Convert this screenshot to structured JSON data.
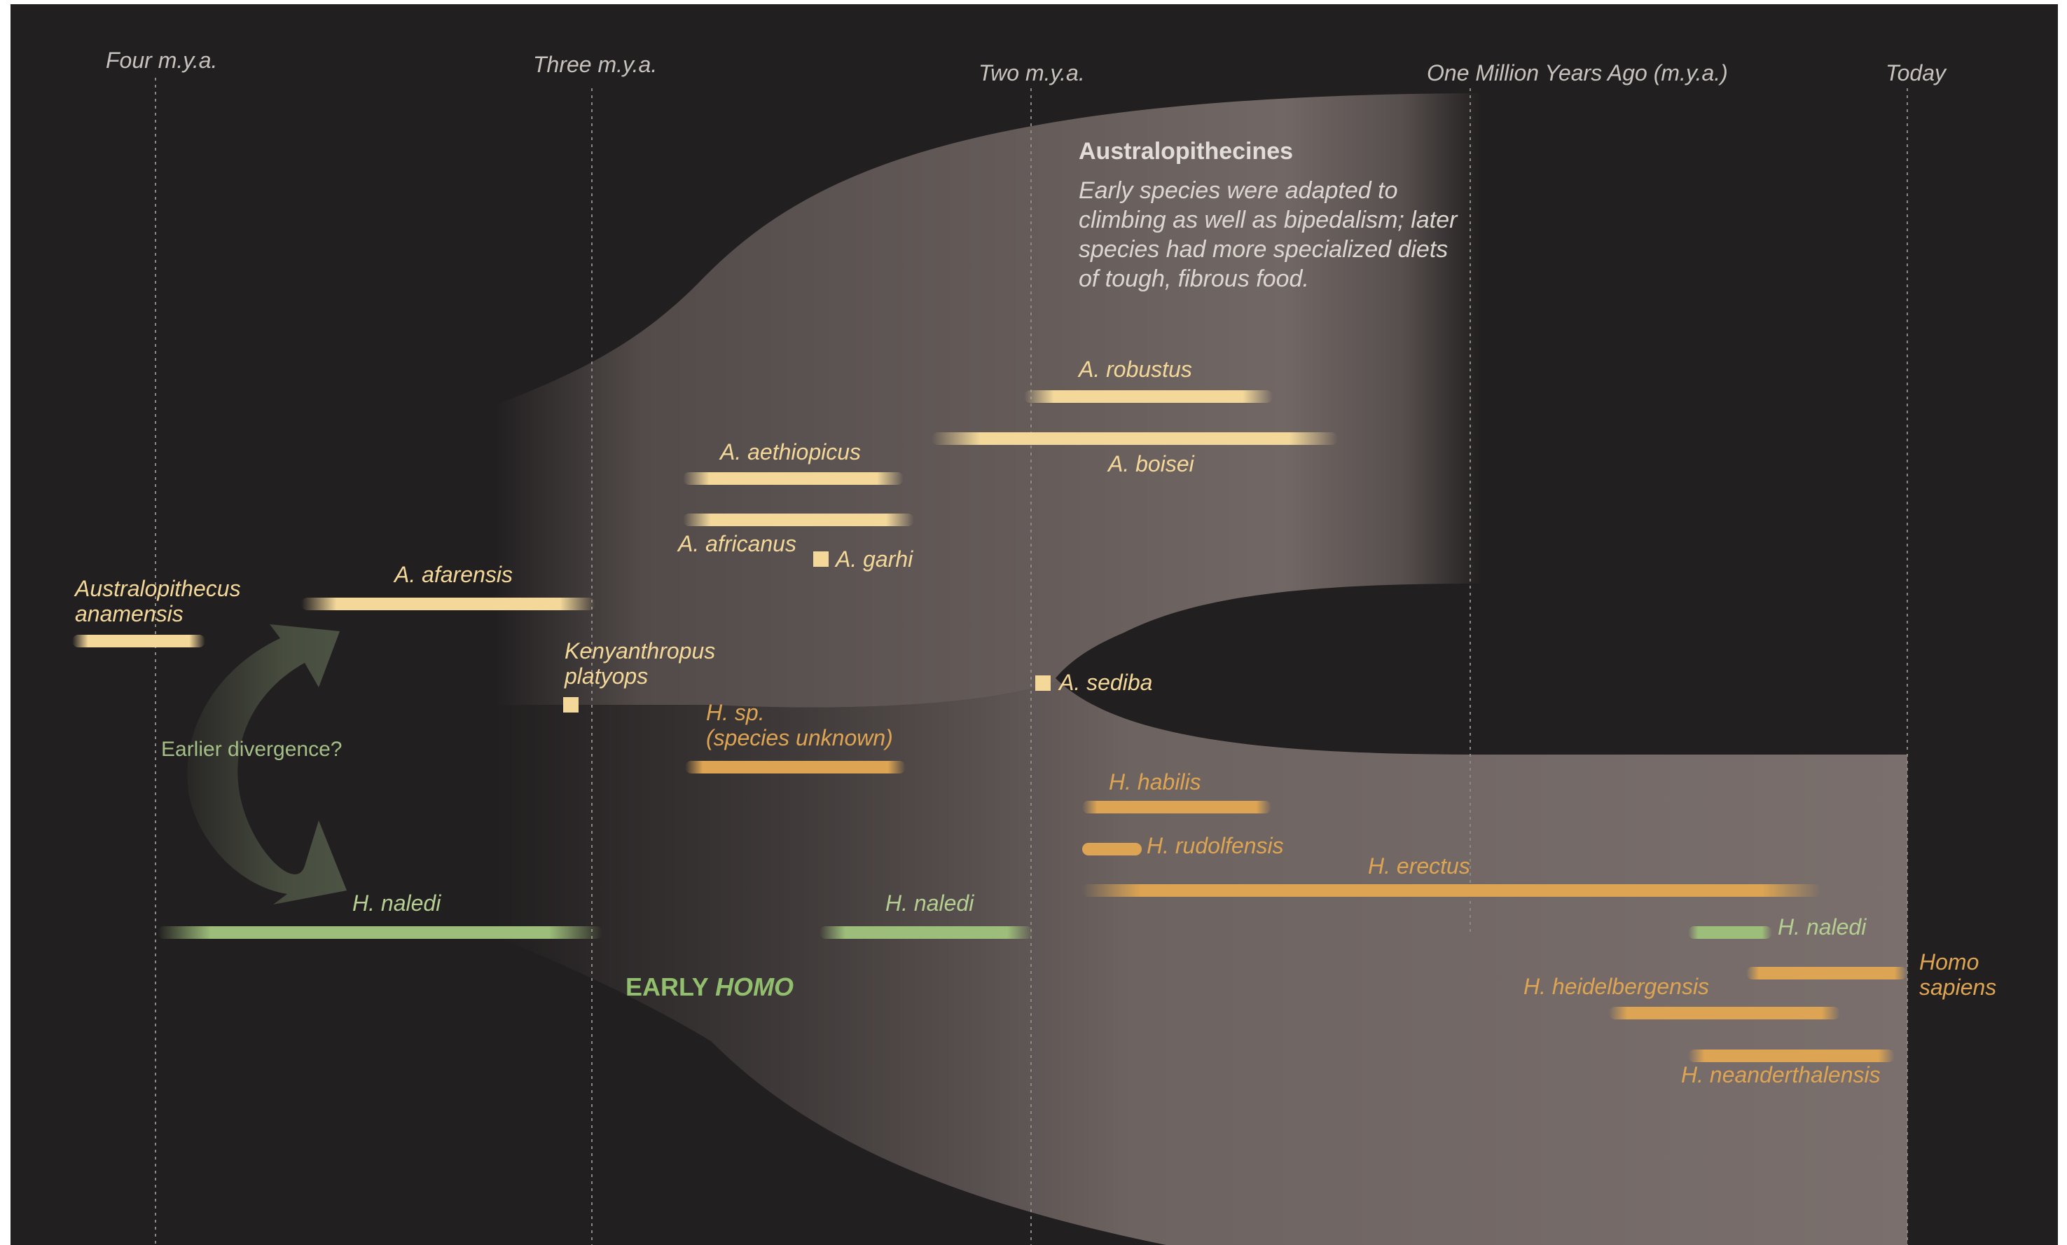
{
  "timeline": {
    "labels": {
      "four": "Four m.y.a.",
      "three": "Three m.y.a.",
      "two": "Two m.y.a.",
      "one": "One Million Years Ago (m.y.a.)",
      "today": "Today"
    }
  },
  "australopithecines": {
    "title": "Australopithecines",
    "description": "Early species were adapted to climbing as well as bipedalism; later species had more specialized diets of tough, fibrous food."
  },
  "early_homo": {
    "prefix": "EARLY ",
    "emphasis": "HOMO"
  },
  "divergence": {
    "label": "Earlier divergence?"
  },
  "species": {
    "anamensis": {
      "line1": "Australopithecus",
      "line2": "anamensis"
    },
    "afarensis": "A. afarensis",
    "kenyanthropus": {
      "line1": "Kenyanthropus",
      "line2": "platyops"
    },
    "aethiopicus": "A. aethiopicus",
    "africanus": "A. africanus",
    "garhi": "A. garhi",
    "robustus": "A. robustus",
    "boisei": "A. boisei",
    "sediba": "A. sediba",
    "hsp": {
      "line1": "H. sp.",
      "line2": "(species unknown)"
    },
    "habilis": "H. habilis",
    "rudolfensis": "H. rudolfensis",
    "erectus": "H. erectus",
    "naledi": "H. naledi",
    "heidelbergensis": "H. heidelbergensis",
    "neanderthalensis": "H. neanderthalensis",
    "sapiens": {
      "line1": "Homo",
      "line2": "sapiens"
    }
  },
  "colors": {
    "background": "#221f20",
    "region": "#7a6f6c",
    "australopithecus": "#f3d89a",
    "homo": "#dda553",
    "naledi": "#b5cf92"
  }
}
